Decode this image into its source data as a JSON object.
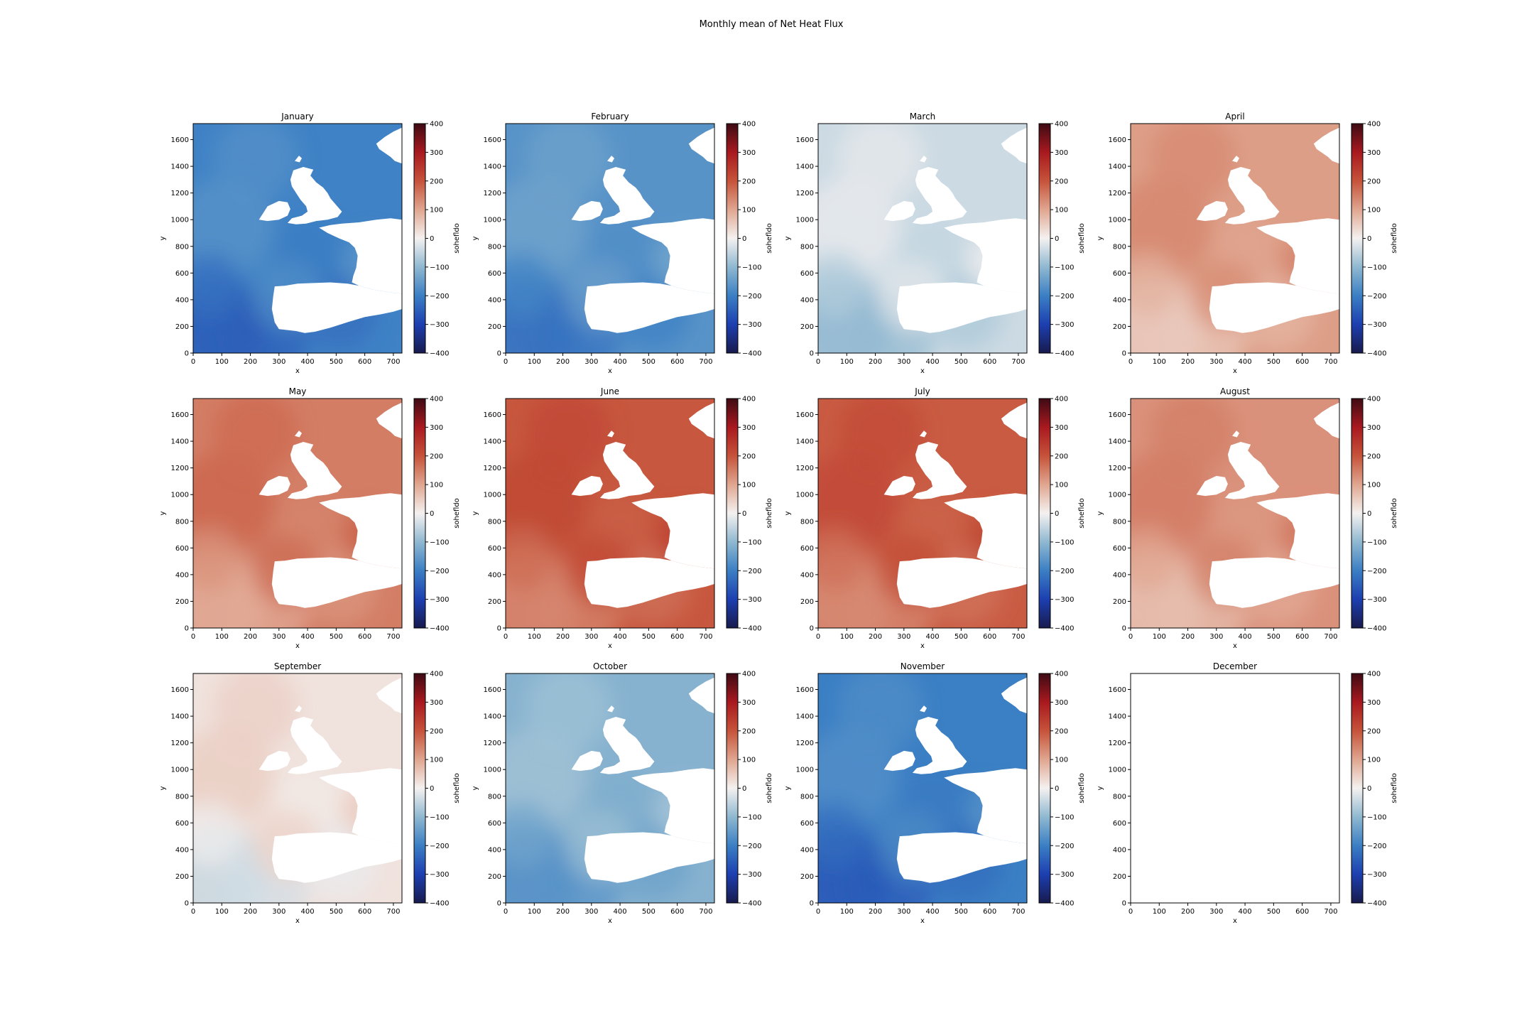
{
  "chart_data": {
    "type": "heatmap",
    "title": "Monthly mean of Net Heat Flux",
    "grid": false,
    "panels": [
      {
        "title": "January",
        "xlabel": "x",
        "ylabel": "y",
        "colorbar_label": "sohefldo",
        "mean_level": -195,
        "has_data": true
      },
      {
        "title": "February",
        "xlabel": "x",
        "ylabel": "y",
        "colorbar_label": "sohefldo",
        "mean_level": -165,
        "has_data": true
      },
      {
        "title": "March",
        "xlabel": "x",
        "ylabel": "y",
        "colorbar_label": "sohefldo",
        "mean_level": -40,
        "has_data": true
      },
      {
        "title": "April",
        "xlabel": "x",
        "ylabel": "y",
        "colorbar_label": "sohefldo",
        "mean_level": 110,
        "has_data": true
      },
      {
        "title": "May",
        "xlabel": "x",
        "ylabel": "y",
        "colorbar_label": "sohefldo",
        "mean_level": 150,
        "has_data": true
      },
      {
        "title": "June",
        "xlabel": "x",
        "ylabel": "y",
        "colorbar_label": "sohefldo",
        "mean_level": 195,
        "has_data": true
      },
      {
        "title": "July",
        "xlabel": "x",
        "ylabel": "y",
        "colorbar_label": "sohefldo",
        "mean_level": 190,
        "has_data": true
      },
      {
        "title": "August",
        "xlabel": "x",
        "ylabel": "y",
        "colorbar_label": "sohefldo",
        "mean_level": 125,
        "has_data": true
      },
      {
        "title": "September",
        "xlabel": "x",
        "ylabel": "y",
        "colorbar_label": "sohefldo",
        "mean_level": 20,
        "has_data": true
      },
      {
        "title": "October",
        "xlabel": "x",
        "ylabel": "y",
        "colorbar_label": "sohefldo",
        "mean_level": -110,
        "has_data": true
      },
      {
        "title": "November",
        "xlabel": "x",
        "ylabel": "y",
        "colorbar_label": "sohefldo",
        "mean_level": -200,
        "has_data": true
      },
      {
        "title": "December",
        "xlabel": "x",
        "ylabel": "y",
        "colorbar_label": "sohefldo",
        "mean_level": null,
        "has_data": false
      }
    ],
    "xlim": [
      0,
      730
    ],
    "ylim": [
      0,
      1720
    ],
    "x_ticks": [
      0,
      100,
      200,
      300,
      400,
      500,
      600,
      700
    ],
    "y_ticks": [
      0,
      200,
      400,
      600,
      800,
      1000,
      1200,
      1400,
      1600
    ],
    "colorbar": {
      "vmin": -400,
      "vmax": 400,
      "ticks": [
        400,
        300,
        200,
        100,
        0,
        -100,
        -200,
        -300,
        -400
      ],
      "tick_labels": [
        "400",
        "300",
        "200",
        "100",
        "0",
        "−100",
        "−200",
        "−300",
        "−400"
      ],
      "colormap_stops": [
        {
          "value": -400,
          "color": "#171b4d"
        },
        {
          "value": -300,
          "color": "#1d3fb0"
        },
        {
          "value": -200,
          "color": "#3b7fc4"
        },
        {
          "value": -100,
          "color": "#8fb8d0"
        },
        {
          "value": 0,
          "color": "#f4f1f0"
        },
        {
          "value": 100,
          "color": "#e0a690"
        },
        {
          "value": 200,
          "color": "#c6533a"
        },
        {
          "value": 300,
          "color": "#a8191f"
        },
        {
          "value": 400,
          "color": "#3f0b14"
        }
      ]
    }
  }
}
